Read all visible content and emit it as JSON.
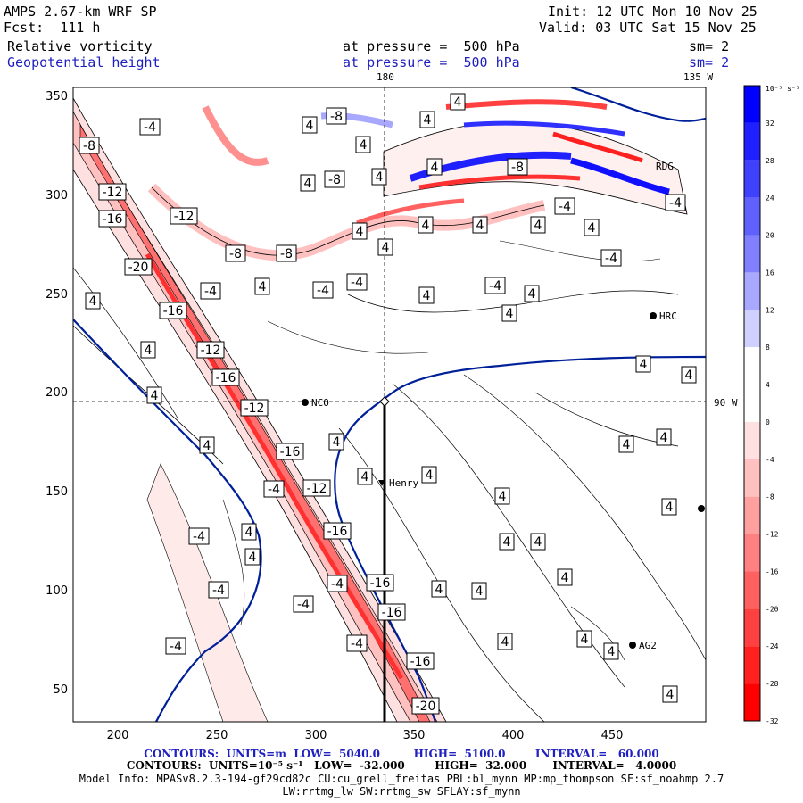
{
  "header": {
    "model": "AMPS 2.67-km WRF SP",
    "forecast": "Fcst:  111 h",
    "init": "Init: 12 UTC Mon 10 Nov 25",
    "valid": "Valid: 03 UTC Sat 15 Nov 25",
    "field1": {
      "name": "Relative vorticity",
      "level": "at pressure =  500 hPa",
      "smooth": "sm= 2"
    },
    "field2": {
      "name": "Geopotential height",
      "level": "at pressure =  500 hPa",
      "smooth": "sm= 2"
    }
  },
  "map": {
    "lon_top_labels": [
      "180",
      "135 W"
    ],
    "lat_right_label": "90 W",
    "stations": [
      "NCO",
      "HRC",
      "Henry",
      "AG2",
      "RDG"
    ],
    "x_ticks": [
      "200",
      "250",
      "300",
      "350",
      "400",
      "450"
    ],
    "y_ticks": [
      "350",
      "300",
      "250",
      "200",
      "150",
      "100",
      "50"
    ]
  },
  "colorbar": {
    "unit_label": "10⁻⁵ s⁻¹",
    "labels": [
      "32",
      "28",
      "24",
      "20",
      "16",
      "12",
      "8",
      "4",
      "0",
      "-4",
      "-8",
      "-12",
      "-16",
      "-20",
      "-24",
      "-28",
      "-32"
    ],
    "colors": [
      "#0000ff",
      "#2020ff",
      "#4040ff",
      "#6060ff",
      "#8080ff",
      "#a8a8ff",
      "#d0d0ff",
      "#ffffff",
      "#ffffff",
      "#ffe0e0",
      "#ffc0c0",
      "#ffa0a0",
      "#ff8080",
      "#ff6060",
      "#ff4040",
      "#ff2020",
      "#ff0000"
    ]
  },
  "contour_labels": [
    {
      "text": "-4",
      "x": 168,
      "y": 142
    },
    {
      "text": "4",
      "x": 347,
      "y": 140
    },
    {
      "text": "-8",
      "x": 377,
      "y": 130
    },
    {
      "text": "4",
      "x": 479,
      "y": 134
    },
    {
      "text": "4",
      "x": 513,
      "y": 114
    },
    {
      "text": "-8",
      "x": 100,
      "y": 163
    },
    {
      "text": "4",
      "x": 407,
      "y": 162
    },
    {
      "text": "4",
      "x": 345,
      "y": 205
    },
    {
      "text": "-8",
      "x": 375,
      "y": 201
    },
    {
      "text": "4",
      "x": 425,
      "y": 198
    },
    {
      "text": "4",
      "x": 487,
      "y": 187
    },
    {
      "text": "-12",
      "x": 126,
      "y": 215
    },
    {
      "text": "-16",
      "x": 126,
      "y": 245
    },
    {
      "text": "-12",
      "x": 206,
      "y": 242
    },
    {
      "text": "-4",
      "x": 633,
      "y": 231
    },
    {
      "text": "4",
      "x": 663,
      "y": 255
    },
    {
      "text": "-4",
      "x": 757,
      "y": 227
    },
    {
      "text": "4",
      "x": 403,
      "y": 259
    },
    {
      "text": "4",
      "x": 477,
      "y": 252
    },
    {
      "text": "4",
      "x": 538,
      "y": 252
    },
    {
      "text": "4",
      "x": 603,
      "y": 252
    },
    {
      "text": "-8",
      "x": 264,
      "y": 284
    },
    {
      "text": "-8",
      "x": 321,
      "y": 284
    },
    {
      "text": "4",
      "x": 432,
      "y": 277
    },
    {
      "text": "-4",
      "x": 685,
      "y": 289
    },
    {
      "text": "-20",
      "x": 155,
      "y": 299
    },
    {
      "text": "-4",
      "x": 236,
      "y": 326
    },
    {
      "text": "4",
      "x": 294,
      "y": 321
    },
    {
      "text": "-4",
      "x": 362,
      "y": 325
    },
    {
      "text": "-4",
      "x": 400,
      "y": 316
    },
    {
      "text": "4",
      "x": 478,
      "y": 331
    },
    {
      "text": "-4",
      "x": 555,
      "y": 320
    },
    {
      "text": "4",
      "x": 596,
      "y": 329
    },
    {
      "text": "4",
      "x": 104,
      "y": 337
    },
    {
      "text": "-16",
      "x": 194,
      "y": 348
    },
    {
      "text": "4",
      "x": 571,
      "y": 351
    },
    {
      "text": "4",
      "x": 166,
      "y": 392
    },
    {
      "text": "-12",
      "x": 236,
      "y": 392
    },
    {
      "text": "-16",
      "x": 253,
      "y": 423
    },
    {
      "text": "4",
      "x": 173,
      "y": 443
    },
    {
      "text": "-12",
      "x": 285,
      "y": 457
    },
    {
      "text": "4",
      "x": 721,
      "y": 408
    },
    {
      "text": "4",
      "x": 772,
      "y": 420
    },
    {
      "text": "4",
      "x": 377,
      "y": 495
    },
    {
      "text": "4",
      "x": 232,
      "y": 499
    },
    {
      "text": "-16",
      "x": 325,
      "y": 506
    },
    {
      "text": "4",
      "x": 702,
      "y": 498
    },
    {
      "text": "4",
      "x": 744,
      "y": 490
    },
    {
      "text": "-4",
      "x": 307,
      "y": 548
    },
    {
      "text": "-12",
      "x": 355,
      "y": 547
    },
    {
      "text": "4",
      "x": 409,
      "y": 534
    },
    {
      "text": "4",
      "x": 481,
      "y": 532
    },
    {
      "text": "4",
      "x": 563,
      "y": 556
    },
    {
      "text": "4",
      "x": 750,
      "y": 568
    },
    {
      "text": "-4",
      "x": 223,
      "y": 601
    },
    {
      "text": "4",
      "x": 279,
      "y": 596
    },
    {
      "text": "-16",
      "x": 378,
      "y": 595
    },
    {
      "text": "4",
      "x": 283,
      "y": 624
    },
    {
      "text": "4",
      "x": 568,
      "y": 607
    },
    {
      "text": "4",
      "x": 603,
      "y": 607
    },
    {
      "text": "4",
      "x": 633,
      "y": 647
    },
    {
      "text": "-4",
      "x": 245,
      "y": 661
    },
    {
      "text": "-4",
      "x": 378,
      "y": 654
    },
    {
      "text": "-16",
      "x": 426,
      "y": 653
    },
    {
      "text": "4",
      "x": 492,
      "y": 660
    },
    {
      "text": "4",
      "x": 537,
      "y": 662
    },
    {
      "text": "-4",
      "x": 340,
      "y": 677
    },
    {
      "text": "-16",
      "x": 439,
      "y": 686
    },
    {
      "text": "4",
      "x": 685,
      "y": 730
    },
    {
      "text": "-4",
      "x": 197,
      "y": 724
    },
    {
      "text": "-4",
      "x": 400,
      "y": 721
    },
    {
      "text": "4",
      "x": 566,
      "y": 719
    },
    {
      "text": "4",
      "x": 655,
      "y": 716
    },
    {
      "text": "-16",
      "x": 471,
      "y": 741
    },
    {
      "text": "4",
      "x": 751,
      "y": 778
    },
    {
      "text": "-20",
      "x": 477,
      "y": 791
    },
    {
      "text": "-8",
      "x": 580,
      "y": 187
    }
  ],
  "footer": {
    "line1": "CONTOURS:  UNITS=m  LOW=  5040.0         HIGH=  5100.0        INTERVAL=   60.000",
    "line2": "CONTOURS:  UNITS=10⁻⁵ s⁻¹   LOW=  -32.000        HIGH=  32.000       INTERVAL=   4.0000",
    "line3": "Model Info: MPASv8.2.3-194-gf29cd82c CU:cu_grell_freitas PBL:bl_mynn MP:mp_thompson SF:sf_noahmp 2.7",
    "line4": "LW:rrtmg_lw SW:rrtmg_sw SFLAY:sf_mynn"
  }
}
